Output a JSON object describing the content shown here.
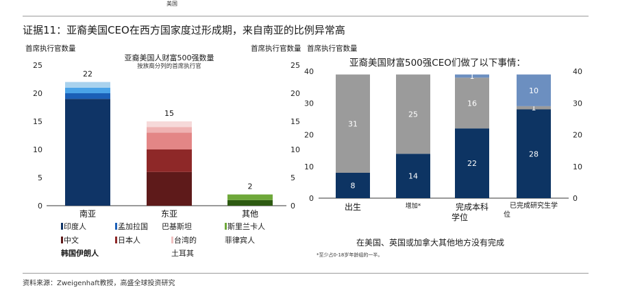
{
  "header": {
    "top_tag": "美国",
    "title": "证据11：亚裔美国CEO在西方国家度过形成期，来自南亚的比例异常高"
  },
  "chart_data": [
    {
      "type": "bar",
      "stacked": true,
      "title": "亚裔美国人财富500强数量",
      "subtitle": "按族裔分列的首席执行官",
      "ylabel_left": "首席执行官数量",
      "ylabel_right": "首席执行官数量",
      "ylim": [
        0,
        25
      ],
      "yticks": [
        0,
        5,
        10,
        15,
        20,
        25
      ],
      "categories": [
        "南亚",
        "东亚",
        "其他"
      ],
      "totals": [
        22,
        15,
        2
      ],
      "series": [
        {
          "name": "印度人",
          "color": "#0f3466",
          "values": [
            19,
            0,
            0
          ]
        },
        {
          "name": "孟加拉国",
          "color": "#1b5fb7",
          "values": [
            1,
            0,
            0
          ]
        },
        {
          "name": "巴基斯坦",
          "color": "#4aa3e8",
          "values": [
            1,
            0,
            0
          ]
        },
        {
          "name": "斯里兰卡人",
          "color": "#a9d2ee",
          "values": [
            1,
            0,
            0
          ]
        },
        {
          "name": "中文",
          "color": "#5e1a1a",
          "values": [
            0,
            6,
            0
          ]
        },
        {
          "name": "日本人",
          "color": "#8e2828",
          "values": [
            0,
            4,
            0
          ]
        },
        {
          "name": "台湾的",
          "color": "#e38686",
          "values": [
            0,
            3,
            0
          ]
        },
        {
          "name": "韩国",
          "color": "#efb2b2",
          "values": [
            0,
            1,
            0
          ]
        },
        {
          "name": "伊朗人",
          "color": "#f6d9d9",
          "values": [
            0,
            1,
            0
          ]
        },
        {
          "name": "菲律宾人",
          "color": "#2d5a12",
          "values": [
            0,
            0,
            1
          ]
        },
        {
          "name": "土耳其",
          "color": "#6ea83a",
          "values": [
            0,
            0,
            1
          ]
        }
      ],
      "legend": [
        {
          "label": "印度人",
          "color": "#0f3466"
        },
        {
          "label": "孟加拉国",
          "color": "#1b5fb7"
        },
        {
          "label": "巴基斯坦",
          "color": ""
        },
        {
          "label": "斯里兰卡人",
          "color": "#6ea83a"
        },
        {
          "label": "中文",
          "color": "#5e1a1a"
        },
        {
          "label": "日本人",
          "color": "#8e2828"
        },
        {
          "label": "台湾的",
          "color": "#f0c0c0"
        },
        {
          "label": "菲律宾人",
          "color": ""
        },
        {
          "label": "韩国伊朗人",
          "color": ""
        },
        {
          "label": "土耳其",
          "color": ""
        }
      ]
    },
    {
      "type": "bar",
      "stacked": true,
      "title": "亚裔美国财富500强CEO们做了以下事情：",
      "ylabel_left": "首席执行官数量",
      "ylim": [
        0,
        40
      ],
      "yticks": [
        0,
        10,
        20,
        30,
        40
      ],
      "categories": [
        "出生",
        "增加*",
        "完成本科学位",
        "已完成研究生学位"
      ],
      "series": [
        {
          "name": "在美国、英国或加拿大",
          "color": "#0d3463",
          "values": [
            8,
            14,
            22,
            28
          ]
        },
        {
          "name": "其他地方",
          "color": "#9b9b9b",
          "values": [
            31,
            25,
            16,
            1
          ]
        },
        {
          "name": "没有完成",
          "color": "#6c8fc0",
          "values": [
            0,
            0,
            1,
            10
          ]
        }
      ],
      "bottom_note": "在美国、英国或加拿大其他地方没有完成",
      "footnote": "*至少占0-18岁年龄组的一半。"
    }
  ],
  "footer": {
    "source": "资料来源：Zweigenhaft教授，高盛全球投资研究"
  }
}
